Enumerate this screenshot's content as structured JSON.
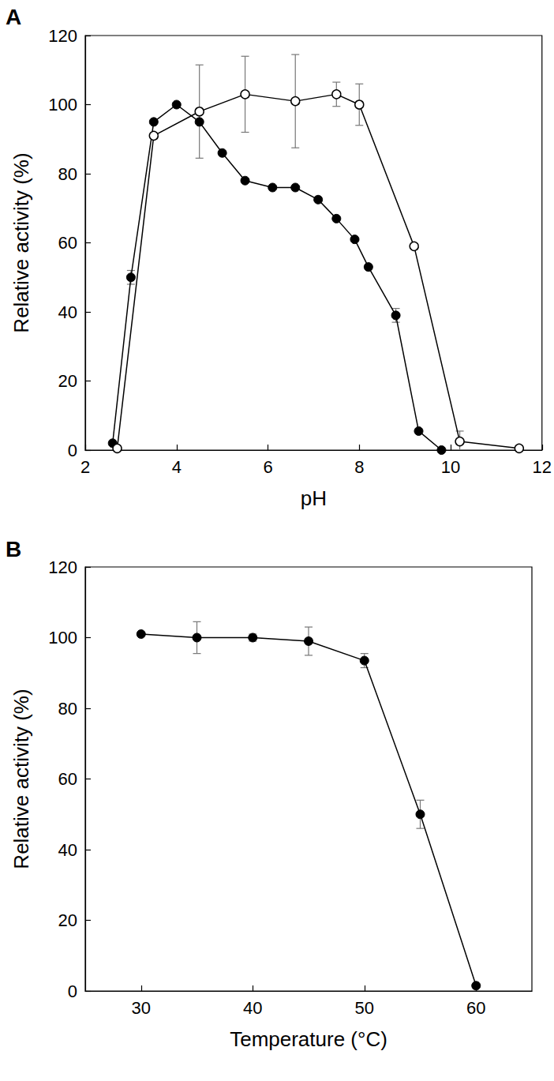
{
  "chart_data": [
    {
      "type": "line",
      "title": "A",
      "x_label": "pH",
      "y_label": "Relative activity (%)",
      "xlim": [
        2,
        12
      ],
      "xticks": [
        2,
        4,
        6,
        8,
        10,
        12
      ],
      "ylim": [
        0,
        120
      ],
      "yticks": [
        0,
        20,
        40,
        60,
        80,
        100,
        120
      ],
      "grid": false,
      "series": [
        {
          "color": "#000000",
          "marker": "filled",
          "x": [
            2.6,
            3.0,
            3.5,
            4.0,
            4.5,
            5.0,
            5.5,
            6.1,
            6.6,
            7.1,
            7.5,
            7.9,
            8.2,
            8.8,
            9.3,
            9.8
          ],
          "values": [
            2,
            50,
            95,
            100,
            95,
            86,
            78,
            76,
            76,
            72.5,
            67,
            61,
            53,
            39,
            5.5,
            0
          ],
          "errors": [
            null,
            2,
            null,
            null,
            null,
            null,
            null,
            null,
            null,
            null,
            null,
            null,
            null,
            2,
            null,
            null
          ]
        },
        {
          "color": "#000000",
          "marker": "open",
          "x": [
            2.7,
            3.5,
            4.5,
            5.5,
            6.6,
            7.5,
            8.0,
            9.2,
            10.2,
            11.5
          ],
          "values": [
            0.5,
            91,
            98,
            103,
            101,
            103,
            100,
            59,
            2.5,
            0.5
          ],
          "errors": [
            null,
            null,
            13.5,
            11,
            13.5,
            3.5,
            6,
            null,
            3,
            null
          ]
        }
      ]
    },
    {
      "type": "line",
      "title": "B",
      "x_label": "Temperature (°C)",
      "y_label": "Relative activity (%)",
      "xlim": [
        25,
        65
      ],
      "xticks": [
        30,
        40,
        50,
        60
      ],
      "ylim": [
        0,
        120
      ],
      "yticks": [
        0,
        20,
        40,
        60,
        80,
        100,
        120
      ],
      "grid": false,
      "series": [
        {
          "color": "#000000",
          "marker": "filled",
          "x": [
            30,
            35,
            40,
            45,
            50,
            55,
            60
          ],
          "values": [
            101,
            100,
            100,
            99,
            93.5,
            50,
            1.5
          ],
          "errors": [
            null,
            4.5,
            1,
            4,
            2,
            4,
            null
          ]
        }
      ]
    }
  ]
}
